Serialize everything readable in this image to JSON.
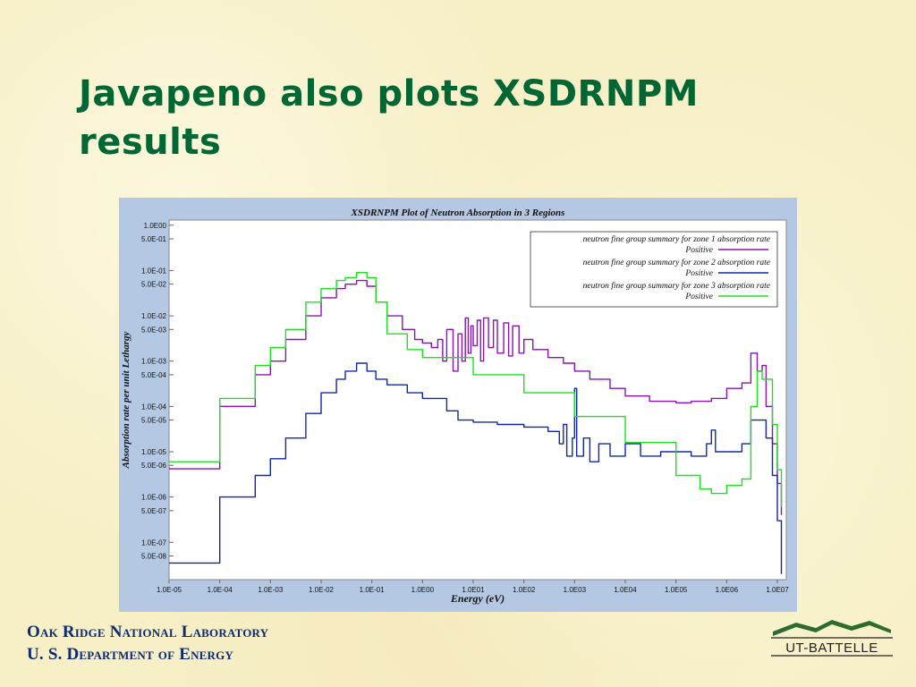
{
  "slide": {
    "title": "Javapeno also plots XSDRNPM results"
  },
  "footer": {
    "line1": "Oak Ridge National Laboratory",
    "line2": "U. S. Department of Energy",
    "logo_text": "UT-BATTELLE"
  },
  "colors": {
    "title": "#006633",
    "footer": "#0b2a72",
    "panel": "#b4c8e4",
    "zone1": "#8b12b6",
    "zone2": "#1028a8",
    "zone3": "#1fe01f"
  },
  "chart_data": {
    "type": "line",
    "title": "XSDRNPM Plot of Neutron Absorption in 3 Regions",
    "xlabel": "Energy (eV)",
    "ylabel": "Absorption rate per unit Lethargy",
    "x_scale": "log",
    "y_scale": "log",
    "xlim": [
      1e-05,
      15000000.0
    ],
    "ylim": [
      1.5e-08,
      1.3
    ],
    "x_ticks": [
      "1.0E-05",
      "1.0E-04",
      "1.0E-03",
      "1.0E-02",
      "1.0E-01",
      "1.0E00",
      "1.0E01",
      "1.0E02",
      "1.0E03",
      "1.0E04",
      "1.0E05",
      "1.0E06",
      "1.0E07"
    ],
    "y_ticks": [
      "1.0E00",
      "5.0E-01",
      "1.0E-01",
      "5.0E-02",
      "1.0E-02",
      "5.0E-03",
      "1.0E-03",
      "5.0E-04",
      "1.0E-04",
      "5.0E-05",
      "1.0E-05",
      "5.0E-06",
      "1.0E-06",
      "5.0E-07",
      "1.0E-07",
      "5.0E-08"
    ],
    "legend_position": "top-right",
    "series": [
      {
        "name": "neutron fine group summary for zone 1 absorption rate",
        "sub": "Positive",
        "color": "#8b12b6",
        "points": [
          [
            1e-05,
            4.2e-06
          ],
          [
            0.0001,
            4.2e-06
          ],
          [
            0.0001,
            0.0001
          ],
          [
            0.0005,
            0.0001
          ],
          [
            0.0005,
            0.0005
          ],
          [
            0.001,
            0.001
          ],
          [
            0.002,
            0.003
          ],
          [
            0.005,
            0.01
          ],
          [
            0.01,
            0.025
          ],
          [
            0.02,
            0.04
          ],
          [
            0.03,
            0.05
          ],
          [
            0.05,
            0.06
          ],
          [
            0.08,
            0.045
          ],
          [
            0.12,
            0.02
          ],
          [
            0.2,
            0.01
          ],
          [
            0.4,
            0.005
          ],
          [
            0.7,
            0.003
          ],
          [
            1,
            0.0025
          ],
          [
            1.5,
            0.002
          ],
          [
            2,
            0.003
          ],
          [
            2.5,
            0.001
          ],
          [
            3,
            0.005
          ],
          [
            4,
            0.0006
          ],
          [
            5,
            0.004
          ],
          [
            6,
            0.001
          ],
          [
            7,
            0.009
          ],
          [
            8,
            0.0015
          ],
          [
            9,
            0.006
          ],
          [
            10,
            0.0022
          ],
          [
            12,
            0.008
          ],
          [
            14,
            0.001
          ],
          [
            16,
            0.009
          ],
          [
            20,
            0.002
          ],
          [
            25,
            0.008
          ],
          [
            30,
            0.0015
          ],
          [
            40,
            0.007
          ],
          [
            50,
            0.0013
          ],
          [
            60,
            0.006
          ],
          [
            80,
            0.0015
          ],
          [
            100,
            0.003
          ],
          [
            150,
            0.0018
          ],
          [
            300,
            0.0012
          ],
          [
            600,
            0.0009
          ],
          [
            1000,
            0.0006
          ],
          [
            2000,
            0.0004
          ],
          [
            5000,
            0.00025
          ],
          [
            10000.0,
            0.00017
          ],
          [
            30000.0,
            0.00013
          ],
          [
            100000.0,
            0.00012
          ],
          [
            200000.0,
            0.00013
          ],
          [
            500000.0,
            0.00015
          ],
          [
            1000000.0,
            0.00025
          ],
          [
            2000000.0,
            0.00033
          ],
          [
            3000000.0,
            0.0015
          ],
          [
            4000000.0,
            0.0006
          ],
          [
            5000000.0,
            0.0008
          ],
          [
            6000000.0,
            0.0001
          ],
          [
            8000000.0,
            1.5e-05
          ],
          [
            10000000.0,
            2e-06
          ],
          [
            12000000.0,
            4e-07
          ]
        ]
      },
      {
        "name": "neutron fine group summary for zone 2 absorption rate",
        "sub": "Positive",
        "color": "#1028a8",
        "points": [
          [
            1e-05,
            3.5e-08
          ],
          [
            0.0001,
            3.5e-08
          ],
          [
            0.0001,
            1e-06
          ],
          [
            0.0005,
            1e-06
          ],
          [
            0.0005,
            3e-06
          ],
          [
            0.001,
            7e-06
          ],
          [
            0.002,
            2e-05
          ],
          [
            0.005,
            7e-05
          ],
          [
            0.01,
            0.0002
          ],
          [
            0.02,
            0.0004
          ],
          [
            0.03,
            0.0006
          ],
          [
            0.05,
            0.0009
          ],
          [
            0.08,
            0.0006
          ],
          [
            0.12,
            0.0004
          ],
          [
            0.2,
            0.0003
          ],
          [
            0.5,
            0.0002
          ],
          [
            1,
            0.00015
          ],
          [
            3,
            8e-05
          ],
          [
            5,
            5e-05
          ],
          [
            10,
            4.5e-05
          ],
          [
            30,
            4e-05
          ],
          [
            100,
            3.5e-05
          ],
          [
            300,
            2.8e-05
          ],
          [
            500,
            1.5e-05
          ],
          [
            600,
            4e-05
          ],
          [
            700,
            8e-06
          ],
          [
            900,
            2e-05
          ],
          [
            1000.0,
            0.00025
          ],
          [
            1100.0,
            8e-06
          ],
          [
            1500.0,
            2e-05
          ],
          [
            2000.0,
            6e-06
          ],
          [
            3000.0,
            1.5e-05
          ],
          [
            5000.0,
            8e-06
          ],
          [
            10000.0,
            1.5e-05
          ],
          [
            20000.0,
            8e-06
          ],
          [
            50000.0,
            1e-05
          ],
          [
            100000.0,
            1e-05
          ],
          [
            200000.0,
            8e-06
          ],
          [
            400000.0,
            1.5e-05
          ],
          [
            500000.0,
            3e-05
          ],
          [
            600000.0,
            1e-05
          ],
          [
            1000000.0,
            1e-05
          ],
          [
            2000000.0,
            1.5e-05
          ],
          [
            3000000.0,
            5e-05
          ],
          [
            5000000.0,
            5e-05
          ],
          [
            6000000.0,
            2e-05
          ],
          [
            8000000.0,
            3e-06
          ],
          [
            10000000.0,
            3e-07
          ],
          [
            12000000.0,
            2e-08
          ]
        ]
      },
      {
        "name": "neutron fine group summary for zone 3 absorption rate",
        "sub": "Positive",
        "color": "#1fe01f",
        "points": [
          [
            1e-05,
            6e-06
          ],
          [
            0.0001,
            6e-06
          ],
          [
            0.0001,
            0.00015
          ],
          [
            0.0005,
            0.00015
          ],
          [
            0.0005,
            0.0008
          ],
          [
            0.001,
            0.002
          ],
          [
            0.002,
            0.005
          ],
          [
            0.005,
            0.02
          ],
          [
            0.01,
            0.04
          ],
          [
            0.02,
            0.06
          ],
          [
            0.03,
            0.07
          ],
          [
            0.05,
            0.09
          ],
          [
            0.08,
            0.07
          ],
          [
            0.12,
            0.02
          ],
          [
            0.2,
            0.004
          ],
          [
            0.5,
            0.0018
          ],
          [
            1,
            0.0012
          ],
          [
            10,
            0.0005
          ],
          [
            100,
            0.0002
          ],
          [
            1000.0,
            6e-05
          ],
          [
            10000.0,
            1.6e-05
          ],
          [
            100000.0,
            3e-06
          ],
          [
            300000.0,
            1.5e-06
          ],
          [
            500000.0,
            1.2e-06
          ],
          [
            1000000.0,
            1.8e-06
          ],
          [
            2000000.0,
            2.5e-06
          ],
          [
            3000000.0,
            0.0001
          ],
          [
            4000000.0,
            0.0006
          ],
          [
            5000000.0,
            0.0004
          ],
          [
            6000000.0,
            0.0004
          ],
          [
            8000000.0,
            4e-05
          ],
          [
            10000000.0,
            4e-06
          ],
          [
            12000000.0,
            6e-07
          ]
        ]
      }
    ]
  }
}
